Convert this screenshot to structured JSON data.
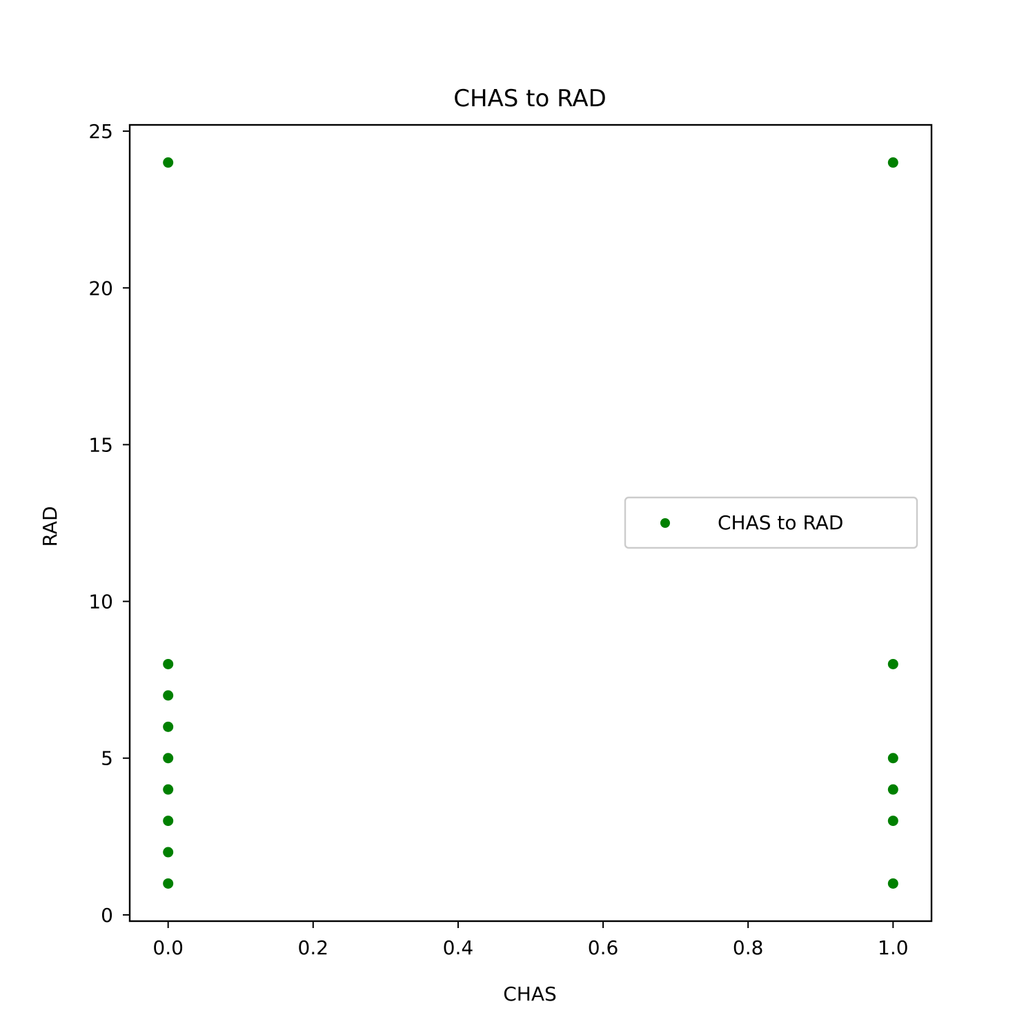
{
  "chart_data": {
    "type": "scatter",
    "title": "CHAS to RAD",
    "xlabel": "CHAS",
    "ylabel": "RAD",
    "xlim": [
      -0.053,
      1.053
    ],
    "ylim": [
      -0.2,
      25.2
    ],
    "xticks": [
      0.0,
      0.2,
      0.4,
      0.6,
      0.8,
      1.0
    ],
    "xtick_labels": [
      "0.0",
      "0.2",
      "0.4",
      "0.6",
      "0.8",
      "1.0"
    ],
    "yticks": [
      0,
      5,
      10,
      15,
      20,
      25
    ],
    "ytick_labels": [
      "0",
      "5",
      "10",
      "15",
      "20",
      "25"
    ],
    "grid": false,
    "legend_position": "center-right",
    "series": [
      {
        "name": "CHAS to RAD",
        "color": "#008000",
        "points": [
          [
            0,
            1
          ],
          [
            0,
            2
          ],
          [
            0,
            3
          ],
          [
            0,
            4
          ],
          [
            0,
            5
          ],
          [
            0,
            6
          ],
          [
            0,
            7
          ],
          [
            0,
            8
          ],
          [
            0,
            24
          ],
          [
            1,
            1
          ],
          [
            1,
            3
          ],
          [
            1,
            4
          ],
          [
            1,
            5
          ],
          [
            1,
            8
          ],
          [
            1,
            24
          ]
        ]
      }
    ]
  }
}
